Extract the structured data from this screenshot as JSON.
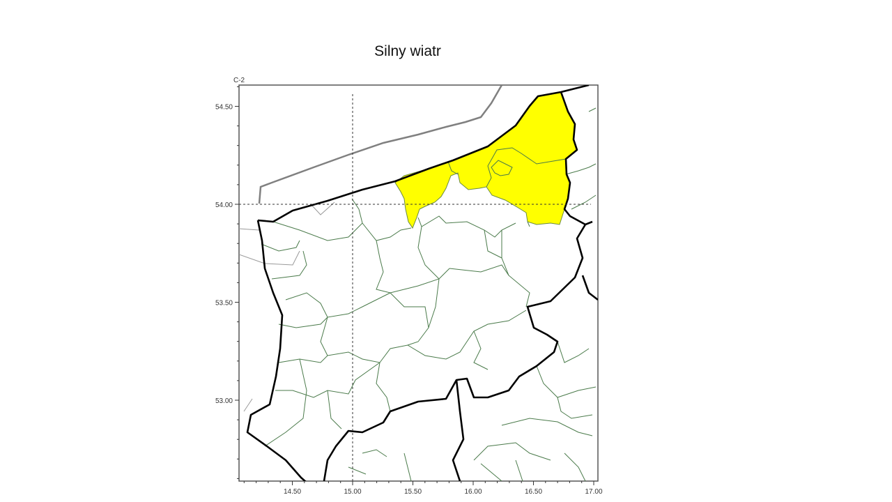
{
  "title": "Silny wiatr",
  "map": {
    "panel_label": "C-2",
    "x_ticks": [
      "14.50",
      "15.00",
      "15.50",
      "16.00",
      "16.50",
      "17.00"
    ],
    "y_ticks": [
      "54.50",
      "54.00",
      "53.50",
      "53.00"
    ],
    "crosshair": {
      "lon": "15.00",
      "lat": "54.00"
    },
    "highlight_color": "#ffff00",
    "highlight_meaning": "warning area",
    "colors": {
      "province_border": "#000000",
      "district_border": "#4a7a4a",
      "sea_border": "#808080"
    }
  }
}
